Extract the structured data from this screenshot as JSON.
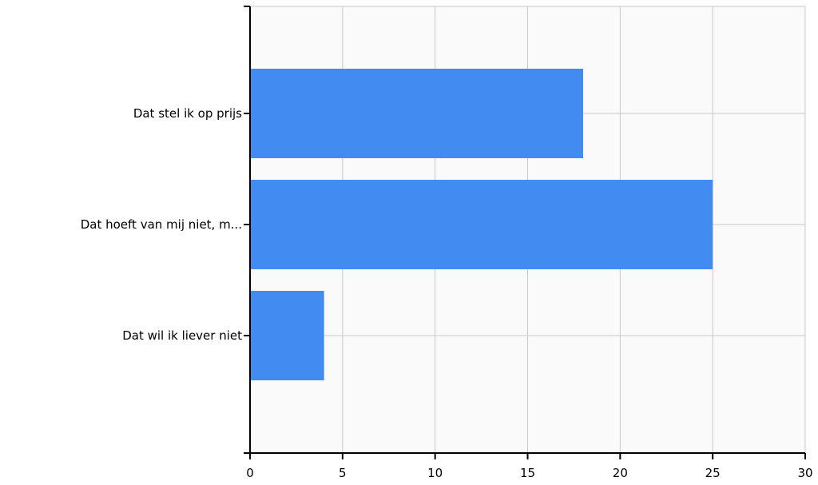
{
  "chart_data": {
    "type": "bar",
    "orientation": "horizontal",
    "title": "",
    "xlabel": "",
    "ylabel": "",
    "categories": [
      "Dat stel ik op prijs",
      "Dat hoeft van mij niet, m...",
      "Dat wil ik liever niet"
    ],
    "values": [
      18,
      25,
      4
    ],
    "xlim": [
      0,
      30
    ],
    "xticks": [
      0,
      5,
      10,
      15,
      20,
      25,
      30
    ],
    "grid": true,
    "colors": {
      "bar": "#428BF0",
      "plot_background": "#FAFAFA",
      "grid": "#C8C8C8",
      "axis": "#000000"
    }
  }
}
